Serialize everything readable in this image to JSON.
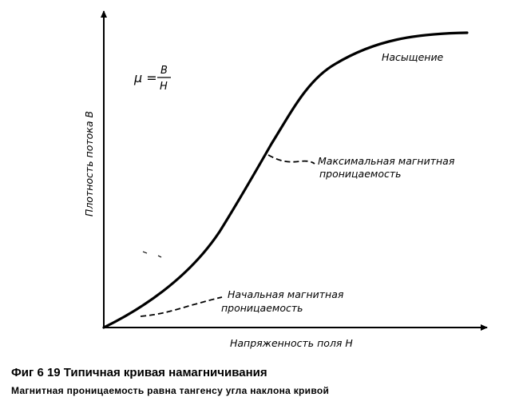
{
  "formula": {
    "lhs": "μ =",
    "numerator": "B",
    "denominator": "H"
  },
  "axes": {
    "ylabel": "Плотность потока B",
    "xlabel": "Напряженность поля H"
  },
  "annotations": {
    "saturation": "Насыщение",
    "max_permeability_line1": "Максимальная магнитная",
    "max_permeability_line2": "проницаемость",
    "initial_permeability_line1": "Начальная магнитная",
    "initial_permeability_line2": "проницаемость"
  },
  "caption": {
    "title": "Фиг 6 19 Типичная кривая намагничивания",
    "subtitle": "Магнитная проницаемость равна тангенсу угла наклона кривой"
  },
  "colors": {
    "ink": "#000000",
    "background": "#ffffff"
  }
}
